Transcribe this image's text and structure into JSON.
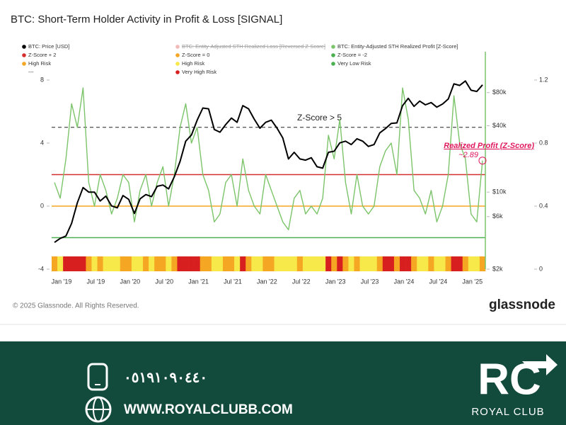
{
  "chart_data": {
    "type": "line",
    "title": "BTC: Short-Term Holder Activity in Profit & Loss [SIGNAL]",
    "categories": [
      "Jan '19",
      null,
      null,
      null,
      null,
      null,
      "Jul '19",
      null,
      null,
      null,
      null,
      null,
      "Jan '20",
      null,
      null,
      null,
      null,
      null,
      "Jul '20",
      null,
      null,
      null,
      null,
      null,
      "Jan '21",
      null,
      null,
      null,
      null,
      null,
      "Jul '21",
      null,
      null,
      null,
      null,
      null,
      "Jan '22",
      null,
      null,
      null,
      null,
      null,
      "Jul '22",
      null,
      null,
      null,
      null,
      null,
      "Jan '23",
      null,
      null,
      null,
      null,
      null,
      "Jul '23",
      null,
      null,
      null,
      null,
      null,
      "Jan '24",
      null,
      null,
      null,
      null,
      null,
      "Jul '24",
      null,
      null,
      null,
      null,
      null,
      "Jan '25",
      null,
      null,
      null
    ],
    "series": [
      {
        "name": "BTC: Price [USD]",
        "color": "#000000",
        "axis": "y2",
        "values": [
          3500,
          3800,
          4000,
          5200,
          8000,
          11000,
          10000,
          10000,
          8300,
          9200,
          7500,
          7200,
          9300,
          8600,
          6400,
          8700,
          9500,
          9100,
          11300,
          11600,
          10700,
          13800,
          19000,
          29000,
          33000,
          45000,
          58000,
          57000,
          37000,
          35000,
          41000,
          47000,
          43000,
          61000,
          57000,
          46000,
          38000,
          43000,
          45000,
          38000,
          31000,
          20000,
          23000,
          20000,
          19500,
          20500,
          17000,
          16500,
          23000,
          23500,
          28000,
          29000,
          27000,
          30500,
          29000,
          26000,
          27000,
          34500,
          37700,
          42000,
          42500,
          61000,
          71000,
          60000,
          67000,
          62000,
          65000,
          59000,
          63000,
          70000,
          96000,
          93000,
          102000,
          84000,
          82000,
          94000
        ]
      },
      {
        "name": "BTC: Entity-Adjusted STH Realized Loss [Reversed Z-Score]",
        "color": "#e57373",
        "hidden": true
      },
      {
        "name": "BTC: Entity-Adjusted STH Realized Profit [Z-Score]",
        "color": "#7cc46a",
        "values": [
          1.5,
          0.5,
          3,
          6.5,
          5,
          7.5,
          1.5,
          0,
          2,
          1,
          -0.5,
          0.5,
          2,
          1.5,
          -1,
          1,
          2,
          0,
          1.5,
          2.5,
          0,
          2,
          5,
          6.5,
          4,
          5,
          2,
          1,
          -1,
          -0.5,
          1.5,
          2,
          0,
          3,
          1,
          0,
          -0.5,
          2,
          1,
          0,
          -1,
          -1.5,
          0.5,
          1,
          -0.5,
          0,
          -0.5,
          0.5,
          4.5,
          3,
          5.5,
          1.5,
          -0.5,
          2,
          0,
          -0.5,
          0,
          2.5,
          3.5,
          4,
          2,
          7.5,
          5.5,
          1,
          0.5,
          -0.5,
          1,
          -1,
          0,
          2,
          7,
          4,
          3,
          -0.5,
          -1,
          2.89
        ]
      }
    ],
    "reference_lines": [
      {
        "name": "Z-Score + 2",
        "value": 2,
        "color": "#d32f2f"
      },
      {
        "name": "Z-Score = 0",
        "value": 0,
        "color": "#f5a623"
      },
      {
        "name": "Z-Score = -2",
        "value": -2,
        "color": "#4caf50"
      }
    ],
    "risk_levels": [
      {
        "name": "High Risk",
        "color": "#f5a623"
      },
      {
        "name": "High Risk",
        "color": "#f7e94a"
      },
      {
        "name": "Very Low Risk",
        "color": "#4caf50"
      },
      {
        "name": "Very High Risk",
        "color": "#d81f1f"
      }
    ],
    "legend_placeholder": "---",
    "risk_strip": [
      0,
      1,
      3,
      3,
      3,
      3,
      0,
      1,
      0,
      1,
      1,
      1,
      0,
      0,
      1,
      1,
      0,
      1,
      0,
      0,
      1,
      0,
      3,
      3,
      3,
      3,
      0,
      0,
      1,
      1,
      0,
      0,
      1,
      3,
      0,
      1,
      1,
      0,
      0,
      1,
      1,
      1,
      1,
      0,
      1,
      1,
      1,
      1,
      3,
      0,
      3,
      0,
      1,
      0,
      1,
      1,
      1,
      0,
      3,
      3,
      0,
      3,
      3,
      0,
      1,
      1,
      0,
      1,
      1,
      0,
      3,
      3,
      0,
      1,
      1,
      0
    ],
    "threshold": {
      "value": 5,
      "label": "Z-Score > 5"
    },
    "annotation": {
      "text": "Realized Profit (Z-Score)",
      "value_text": "~2.89",
      "color": "#e0185e"
    },
    "ylim": [
      -4,
      8
    ],
    "yticks": [
      8,
      4,
      0,
      -4
    ],
    "y2lim": [
      2000,
      104000
    ],
    "y2log": true,
    "y2ticks": [
      {
        "value": 80000,
        "label": "$80k"
      },
      {
        "value": 40000,
        "label": "$40k"
      },
      {
        "value": 10000,
        "label": "$10k"
      },
      {
        "value": 6000,
        "label": "$6k"
      },
      {
        "value": 2000,
        "label": "$2k"
      }
    ],
    "y3lim": [
      0,
      1.2
    ],
    "y3ticks": [
      1.2,
      0.8,
      0.4,
      0
    ]
  },
  "footer": {
    "copyright": "© 2025 Glassnode. All Rights Reserved.",
    "brand": "glassnode"
  },
  "banner": {
    "phone": "٠٥١٩١٠٩٠٤٤٠",
    "website": "WWW.ROYALCLUBB.COM",
    "logo": "RC",
    "logo_name": "ROYAL CLUB"
  }
}
